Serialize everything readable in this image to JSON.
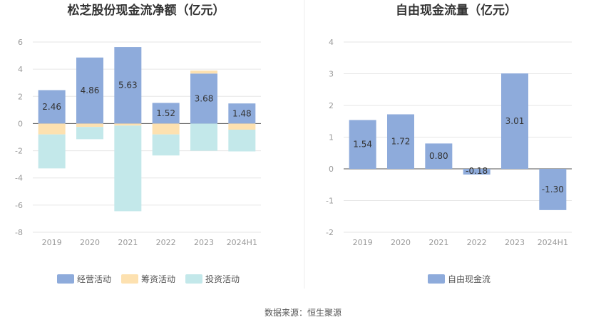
{
  "source_text": "数据来源：恒生聚源",
  "colors": {
    "operating": "#8eabdb",
    "financing": "#fde1b0",
    "investing": "#85d4d9",
    "free_cash": "#8eabdb",
    "grid": "#e6e6e6",
    "axis": "#555555",
    "divider": "#eeeeee"
  },
  "chart_data": [
    {
      "type": "bar",
      "stacked": true,
      "title": "松芝股份现金流净额（亿元）",
      "categories": [
        "2019",
        "2020",
        "2021",
        "2022",
        "2023",
        "2024H1"
      ],
      "ylim": [
        -8,
        6
      ],
      "yticks": [
        6,
        4,
        2,
        0,
        -2,
        -4,
        -6,
        -8
      ],
      "grid": true,
      "legend_position": "bottom",
      "series": [
        {
          "name": "经营活动",
          "color": "#8eabdb",
          "values": [
            2.46,
            4.86,
            5.63,
            1.52,
            3.68,
            1.48
          ],
          "labels": [
            "2.46",
            "4.86",
            "5.63",
            "1.52",
            "3.68",
            "1.48"
          ]
        },
        {
          "name": "筹资活动",
          "color": "#fde1b0",
          "values": [
            -0.8,
            -0.25,
            -0.15,
            -0.8,
            0.22,
            -0.45
          ]
        },
        {
          "name": "投资活动",
          "color": "#c3e8ea",
          "values": [
            -2.5,
            -0.9,
            -6.3,
            -1.55,
            -2.0,
            -1.6
          ]
        }
      ]
    },
    {
      "type": "bar",
      "title": "自由现金流量（亿元）",
      "categories": [
        "2019",
        "2020",
        "2021",
        "2022",
        "2023",
        "2024H1"
      ],
      "ylim": [
        -2,
        4
      ],
      "yticks": [
        4,
        3,
        2,
        1,
        0,
        -1,
        -2
      ],
      "grid": true,
      "legend_position": "bottom",
      "series": [
        {
          "name": "自由现金流",
          "color": "#8eabdb",
          "values": [
            1.54,
            1.72,
            0.8,
            -0.18,
            3.01,
            -1.3
          ],
          "labels": [
            "1.54",
            "1.72",
            "0.80",
            "-0.18",
            "3.01",
            "-1.30"
          ]
        }
      ]
    }
  ]
}
